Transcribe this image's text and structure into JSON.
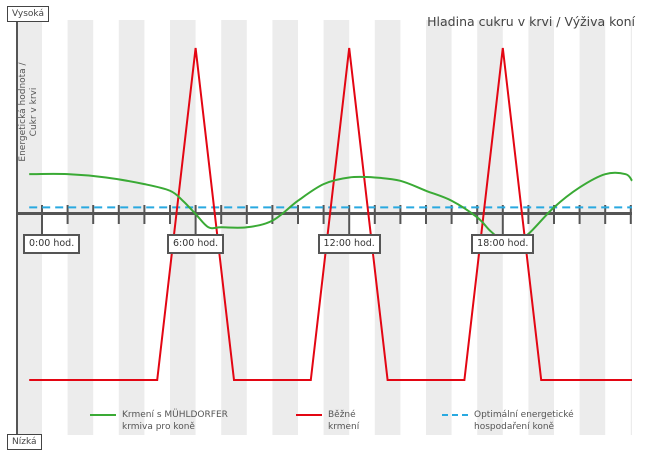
{
  "labels": {
    "high": "Vysoká",
    "low": "Nízká",
    "title": "Hladina cukru v krvi / Výživa koní",
    "ylabel": "Energetická hodnota / Cukr v krvi"
  },
  "legend": [
    {
      "line1": "Krmení s MÜHLDORFER",
      "line2": "krmiva pro koně",
      "color": "#3aaa35",
      "style": "solid"
    },
    {
      "line1": "Běžné",
      "line2": "krmení",
      "color": "#e30613",
      "style": "solid"
    },
    {
      "line1": "Optimální energetické",
      "line2": "hospodaření koně",
      "color": "#29a9e0",
      "style": "dashed"
    }
  ],
  "chart_data": {
    "type": "line",
    "x_unit": "hours",
    "xlim": [
      0,
      23
    ],
    "x_tick_labels": [
      "0:00 hod.",
      "6:00 hod.",
      "12:00 hod.",
      "18:00 hod."
    ],
    "x_tick_values": [
      0,
      6,
      12,
      18
    ],
    "y_range_labels": {
      "top": "Vysoká",
      "bottom": "Nízká"
    },
    "grid": "alternating vertical bands",
    "legend_position": "bottom",
    "series": [
      {
        "name": "Krmení s MÜHLDORFER krmiva pro koně",
        "color": "#3aaa35",
        "x": [
          -0.5,
          1,
          2.5,
          4,
          5,
          5.5,
          6,
          6.5,
          7,
          8,
          9,
          10,
          11,
          12,
          13,
          14,
          15,
          16,
          17,
          17.5,
          18,
          18.5,
          19,
          20,
          21,
          22,
          22.8,
          23.2
        ],
        "y": [
          0.62,
          0.62,
          0.61,
          0.59,
          0.57,
          0.54,
          0.5,
          0.46,
          0.46,
          0.46,
          0.48,
          0.54,
          0.59,
          0.61,
          0.61,
          0.6,
          0.57,
          0.54,
          0.49,
          0.45,
          0.42,
          0.42,
          0.44,
          0.52,
          0.58,
          0.62,
          0.62,
          0.6
        ]
      },
      {
        "name": "Běžné krmení",
        "color": "#e30613",
        "x": [
          -0.5,
          4.5,
          6,
          7.5,
          10.5,
          12,
          13.5,
          16.5,
          18,
          19.5,
          23.2
        ],
        "y": [
          0.0,
          0.0,
          1.0,
          0.0,
          0.0,
          1.0,
          0.0,
          0.0,
          1.0,
          0.0,
          0.0
        ]
      },
      {
        "name": "Optimální energetické hospodaření koně",
        "color": "#29a9e0",
        "style": "dashed",
        "x": [
          -0.5,
          23.2
        ],
        "y": [
          0.52,
          0.52
        ]
      }
    ]
  }
}
